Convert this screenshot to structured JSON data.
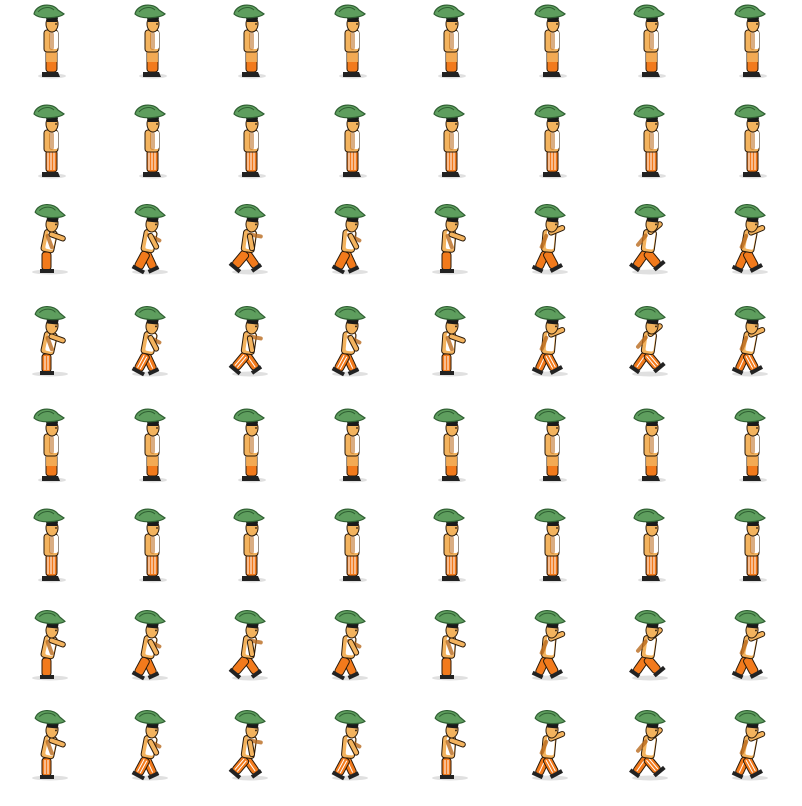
{
  "sheet": {
    "columns": 8,
    "rows": [
      {
        "animation": "stand",
        "facing": "right",
        "palette": "light"
      },
      {
        "animation": "stand",
        "facing": "right",
        "palette": "striped"
      },
      {
        "animation": "run",
        "facing": "right",
        "palette": "light"
      },
      {
        "animation": "run",
        "facing": "right",
        "palette": "striped"
      },
      {
        "animation": "stand",
        "facing": "right",
        "palette": "light"
      },
      {
        "animation": "stand",
        "facing": "right",
        "palette": "striped"
      },
      {
        "animation": "run",
        "facing": "right",
        "palette": "light"
      },
      {
        "animation": "run",
        "facing": "right",
        "palette": "striped"
      }
    ]
  },
  "colors": {
    "background": "#ffffff",
    "hat": "#5e9e5e",
    "hat_dark": "#2f5f32",
    "skin": "#f3b35e",
    "skin_dark": "#b96a1e",
    "shirt": "#ffffff",
    "pants": "#f27a1c",
    "pants_stripe": "#ffffff",
    "shoe": "#222222",
    "hair": "#1a1a1a",
    "outline": "#2a1a0a"
  }
}
